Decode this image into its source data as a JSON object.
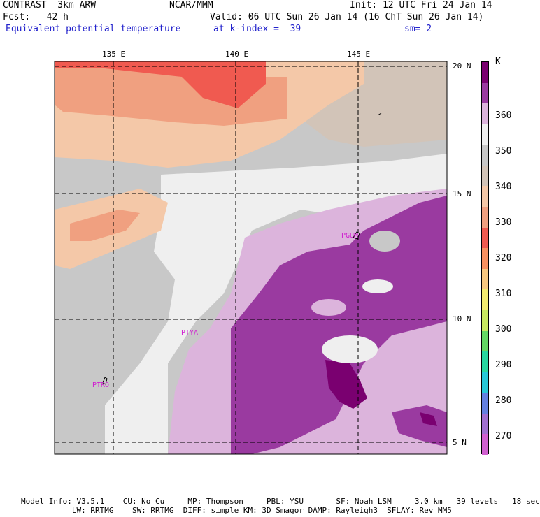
{
  "header": {
    "model": "CONTRAST  3km ARW",
    "org": "NCAR/MMM",
    "init": "Init: 12 UTC Fri 24 Jan 14",
    "fcst": "Fcst:   42 h",
    "valid": "Valid: 06 UTC Sun 26 Jan 14 (16 ChT Sun 26 Jan 14)",
    "field": "Equivalent potential temperature",
    "level": "at k-index =  39",
    "smooth": "sm= 2"
  },
  "axes": {
    "lon_labels": [
      "135 E",
      "140 E",
      "145 E"
    ],
    "lat_labels": [
      "20 N",
      "15 N",
      "10 N",
      "5 N"
    ]
  },
  "stations": [
    "PGUM",
    "PTYA",
    "PTRO"
  ],
  "colorbar": {
    "unit": "K",
    "labels": [
      "360",
      "350",
      "340",
      "330",
      "320",
      "310",
      "300",
      "290",
      "280",
      "270"
    ],
    "colors": [
      "#7a0070",
      "#9a3aa0",
      "#dcb4dc",
      "#f0f0f0",
      "#c8c8c8",
      "#d2c4b8",
      "#f4c8a8",
      "#f0a080",
      "#f05a50",
      "#f89060",
      "#f8c880",
      "#f4ec70",
      "#c8e860",
      "#64d864",
      "#28d8a0",
      "#28c8d8",
      "#6480e0",
      "#a070d0",
      "#d060d0"
    ]
  },
  "footer": {
    "line1": "Model Info: V3.5.1    CU: No Cu     MP: Thompson     PBL: YSU       SF: Noah LSM     3.0 km   39 levels   18 sec",
    "line2": "           LW: RRTMG    SW: RRTMG  DIFF: simple KM: 3D Smagor DAMP: Rayleigh3  SFLAY: Rev MM5"
  }
}
